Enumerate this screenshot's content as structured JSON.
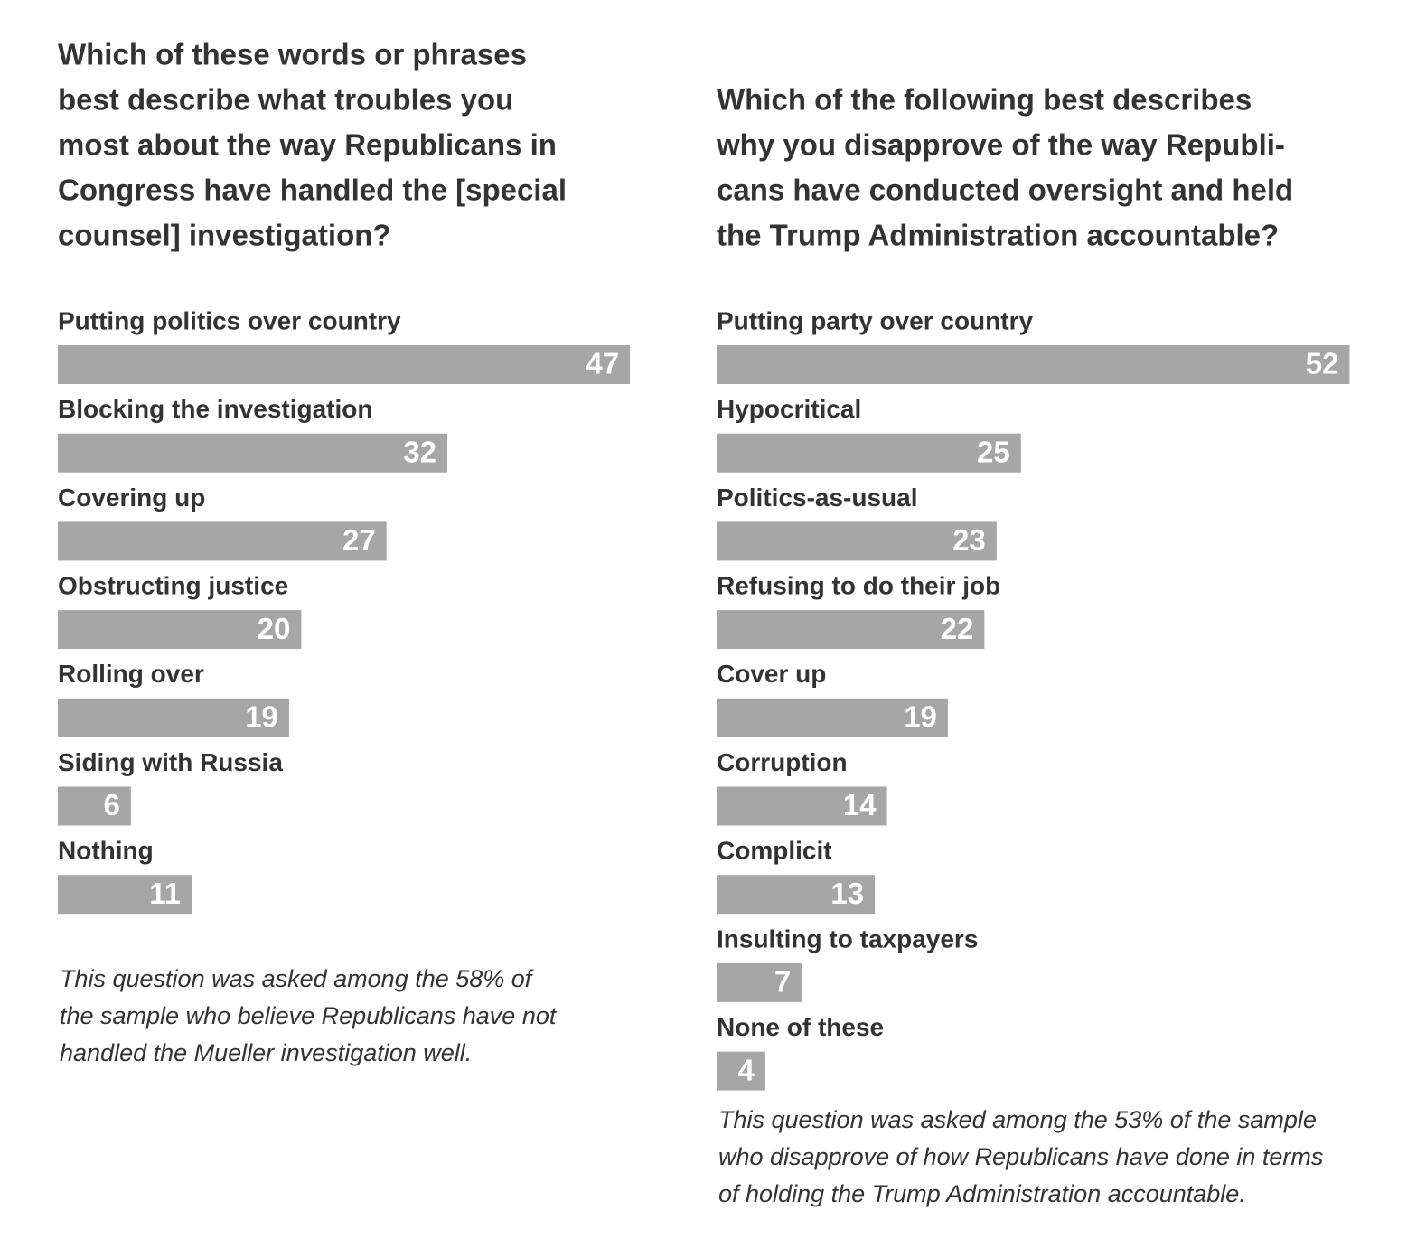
{
  "chart_data": [
    {
      "type": "bar",
      "title": [
        "Which of these words or phrases",
        "best describe what troubles you",
        "most about the way Republicans in",
        "Congress have handled the [special",
        "counsel] investigation?"
      ],
      "categories": [
        "Putting politics over country",
        "Blocking the investigation",
        "Covering up",
        "Obstructing justice",
        "Rolling over",
        "Siding with Russia",
        "Nothing"
      ],
      "values": [
        47,
        32,
        27,
        20,
        19,
        6,
        11
      ],
      "color": "#a6a6a6",
      "note": [
        "This question was asked among the 58% of",
        "the sample who believe Republicans have not",
        "handled the Mueller investigation well."
      ]
    },
    {
      "type": "bar",
      "title": [
        "Which of the following best describes",
        "why you disapprove of the way Republi-",
        "cans have conducted oversight and held",
        "the Trump Administration accountable?"
      ],
      "categories": [
        "Putting party over country",
        "Hypocritical",
        "Politics-as-usual",
        "Refusing to do their job",
        "Cover up",
        "Corruption",
        "Complicit",
        "Insulting to taxpayers",
        "None of these"
      ],
      "values": [
        52,
        25,
        23,
        22,
        19,
        14,
        13,
        7,
        4
      ],
      "color": "#a6a6a6",
      "note": [
        "This question was asked among the 53% of the sample",
        "who disapprove of how Republicans have done in terms",
        "of holding the Trump Administration accountable."
      ]
    }
  ]
}
